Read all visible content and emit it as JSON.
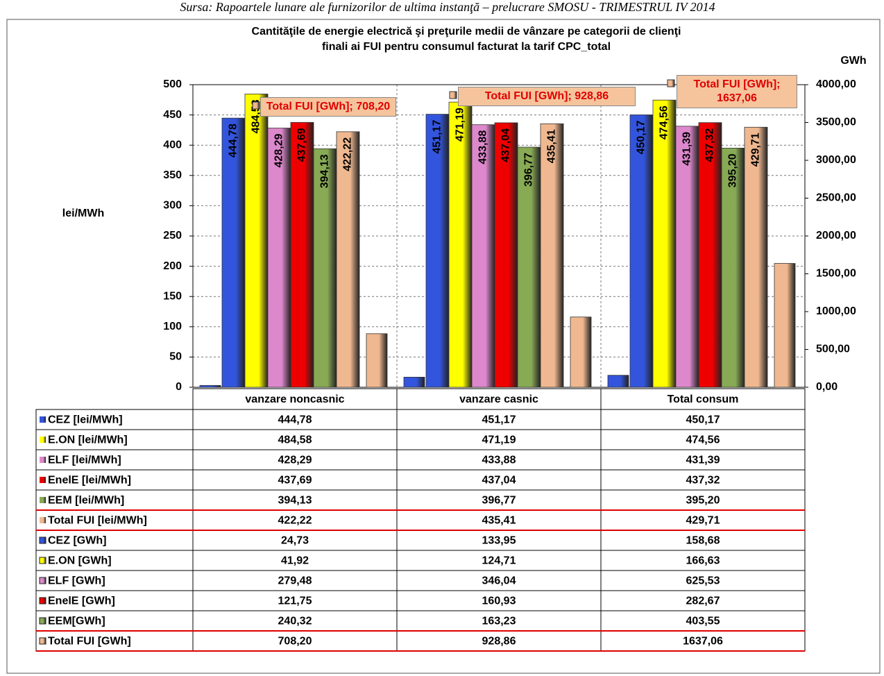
{
  "chart_data": {
    "type": "bar",
    "source": "Sursa: Rapoartele lunare ale furnizorilor de ultima instanţă – prelucrare SMOSU - TRIMESTRUL IV 2014",
    "title": [
      "Cantităţile de energie  electrică  şi preţurile medii  de vânzare pe categorii de clienţi",
      "finali ai FUI  pentru consumul facturat  la tarif CPC_total"
    ],
    "categories": [
      "vanzare noncasnic",
      "vanzare casnic",
      "Total consum"
    ],
    "ylabel": "lei/MWh",
    "y2label": "GWh",
    "ylim": [
      0,
      500
    ],
    "yticks": [
      0,
      50,
      100,
      150,
      200,
      250,
      300,
      350,
      400,
      450,
      500
    ],
    "y2lim": [
      0,
      4000
    ],
    "y2ticks": [
      {
        "value": 0,
        "label": "0,00"
      },
      {
        "value": 500,
        "label": "500,00"
      },
      {
        "value": 1000,
        "label": "1000,00"
      },
      {
        "value": 1500,
        "label": "1500,00"
      },
      {
        "value": 2000,
        "label": "2000,00"
      },
      {
        "value": 2500,
        "label": "2500,00"
      },
      {
        "value": 3000,
        "label": "3000,00"
      },
      {
        "value": 3500,
        "label": "3500,00"
      },
      {
        "value": 4000,
        "label": "4000,00"
      }
    ],
    "grid": true,
    "series": [
      {
        "name": "CEZ [lei/MWh]",
        "color": "#3355dd",
        "label_color": "#ffffff",
        "values": [
          444.78,
          451.17,
          450.17
        ],
        "value_labels": [
          "444,78",
          "451,17",
          "450,17"
        ]
      },
      {
        "name": "E.ON [lei/MWh]",
        "color": "#ffff00",
        "label_color": "#000000",
        "values": [
          484.58,
          471.19,
          474.56
        ],
        "value_labels": [
          "484,58",
          "471,19",
          "474,56"
        ]
      },
      {
        "name": "ELF [lei/MWh]",
        "color": "#dd88cc",
        "label_color": "#ffffff",
        "values": [
          428.29,
          433.88,
          431.39
        ],
        "value_labels": [
          "428,29",
          "433,88",
          "431,39"
        ]
      },
      {
        "name": "EnelE [lei/MWh]",
        "color": "#ee0000",
        "label_color": "#ffffff",
        "values": [
          437.69,
          437.04,
          437.32
        ],
        "value_labels": [
          "437,69",
          "437,04",
          "437,32"
        ]
      },
      {
        "name": "EEM [lei/MWh]",
        "color": "#88aa55",
        "label_color": "#ffffff",
        "values": [
          394.13,
          396.77,
          395.2
        ],
        "value_labels": [
          "394,13",
          "396,77",
          "395,20"
        ]
      },
      {
        "name": "Total FUI [lei/MWh]",
        "color": "#f0b890",
        "label_color": "#cc0000",
        "values": [
          422.22,
          435.41,
          429.71
        ],
        "value_labels": [
          "422,22",
          "435,41",
          "429,71"
        ]
      },
      {
        "name": "CEZ [GWh]",
        "color": "#3355dd",
        "axis": "y2",
        "values": [
          24.73,
          133.95,
          158.68
        ],
        "value_labels": [
          "24,73",
          "133,95",
          "158,68"
        ]
      },
      {
        "name": "E.ON [GWh]",
        "color": "#ffff00",
        "axis": "y2",
        "values": [
          41.92,
          124.71,
          166.63
        ],
        "value_labels": [
          "41,92",
          "124,71",
          "166,63"
        ]
      },
      {
        "name": "ELF [GWh]",
        "color": "#dd88cc",
        "axis": "y2",
        "values": [
          279.48,
          346.04,
          625.53
        ],
        "value_labels": [
          "279,48",
          "346,04",
          "625,53"
        ]
      },
      {
        "name": "EnelE [GWh]",
        "color": "#ee0000",
        "axis": "y2",
        "values": [
          121.75,
          160.93,
          282.67
        ],
        "value_labels": [
          "121,75",
          "160,93",
          "282,67"
        ]
      },
      {
        "name": "EEM[GWh]",
        "color": "#88aa55",
        "axis": "y2",
        "values": [
          240.32,
          163.23,
          403.55
        ],
        "value_labels": [
          "240,32",
          "163,23",
          "403,55"
        ]
      },
      {
        "name": "Total FUI [GWh]",
        "color": "#f0b890",
        "axis": "y2",
        "values": [
          708.2,
          928.86,
          1637.06
        ],
        "value_labels": [
          "708,20",
          "928,86",
          "1637,06"
        ]
      }
    ],
    "annotations": [
      "Total FUI [GWh]; 708,20",
      "Total FUI [GWh]; 928,86",
      "Total FUI [GWh]; 1637,06"
    ]
  }
}
